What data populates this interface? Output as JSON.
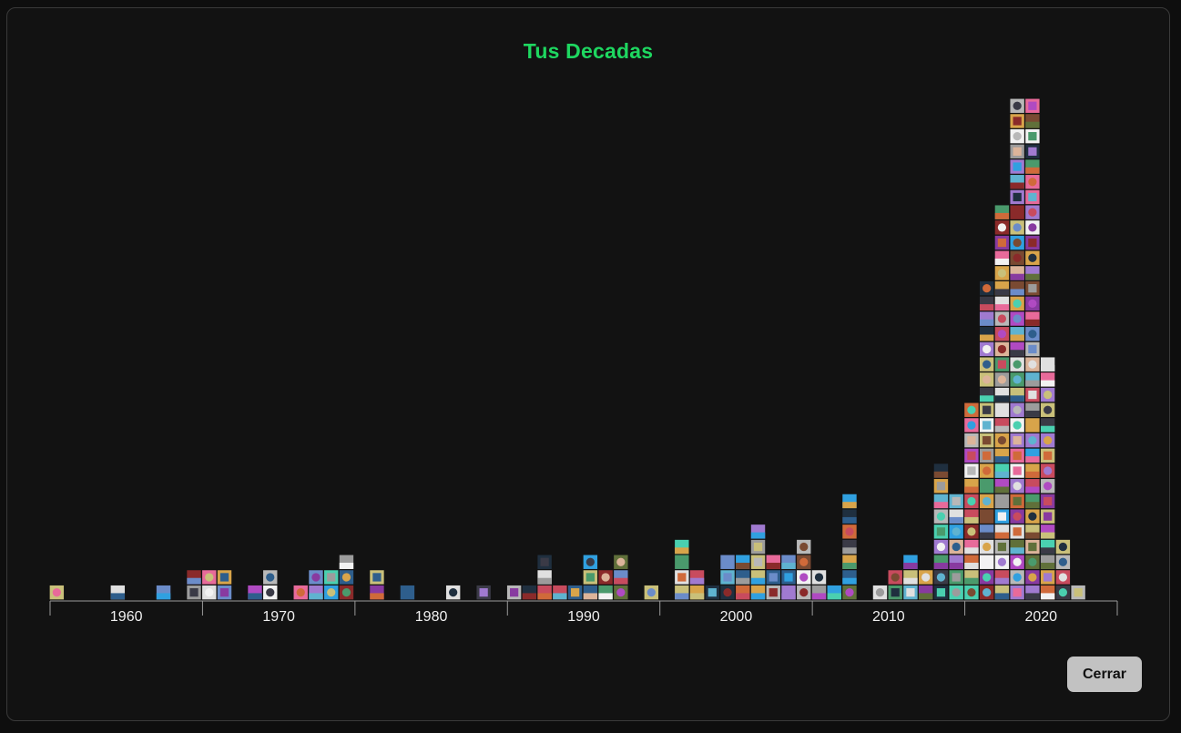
{
  "modal": {
    "title": "Tus Decadas",
    "close_label": "Cerrar",
    "accent_color": "#1ed760"
  },
  "chart_data": {
    "type": "bar",
    "title": "Tus Decadas",
    "xlabel": "",
    "ylabel": "",
    "x_range": [
      1955,
      2025
    ],
    "tick_labels": [
      "1960",
      "1970",
      "1980",
      "1990",
      "2000",
      "2010",
      "2020"
    ],
    "unit": "album covers per year (stacked)",
    "years": [
      1955,
      1956,
      1957,
      1958,
      1959,
      1960,
      1961,
      1962,
      1963,
      1964,
      1965,
      1966,
      1967,
      1968,
      1969,
      1970,
      1971,
      1972,
      1973,
      1974,
      1975,
      1976,
      1977,
      1978,
      1979,
      1980,
      1981,
      1982,
      1983,
      1984,
      1985,
      1986,
      1987,
      1988,
      1989,
      1990,
      1991,
      1992,
      1993,
      1994,
      1995,
      1996,
      1997,
      1998,
      1999,
      2000,
      2001,
      2002,
      2003,
      2004,
      2005,
      2006,
      2007,
      2008,
      2009,
      2010,
      2011,
      2012,
      2013,
      2014,
      2015,
      2016,
      2017,
      2018,
      2019,
      2020,
      2021,
      2022
    ],
    "values": [
      1,
      0,
      0,
      0,
      1,
      0,
      0,
      1,
      0,
      2,
      2,
      2,
      0,
      1,
      2,
      0,
      1,
      2,
      2,
      3,
      0,
      2,
      0,
      1,
      0,
      0,
      1,
      0,
      1,
      0,
      1,
      1,
      3,
      1,
      1,
      3,
      2,
      3,
      0,
      1,
      0,
      4,
      2,
      1,
      3,
      3,
      5,
      3,
      3,
      4,
      2,
      1,
      7,
      0,
      1,
      2,
      3,
      2,
      9,
      7,
      13,
      21,
      26,
      33,
      33,
      16,
      4,
      1
    ]
  }
}
